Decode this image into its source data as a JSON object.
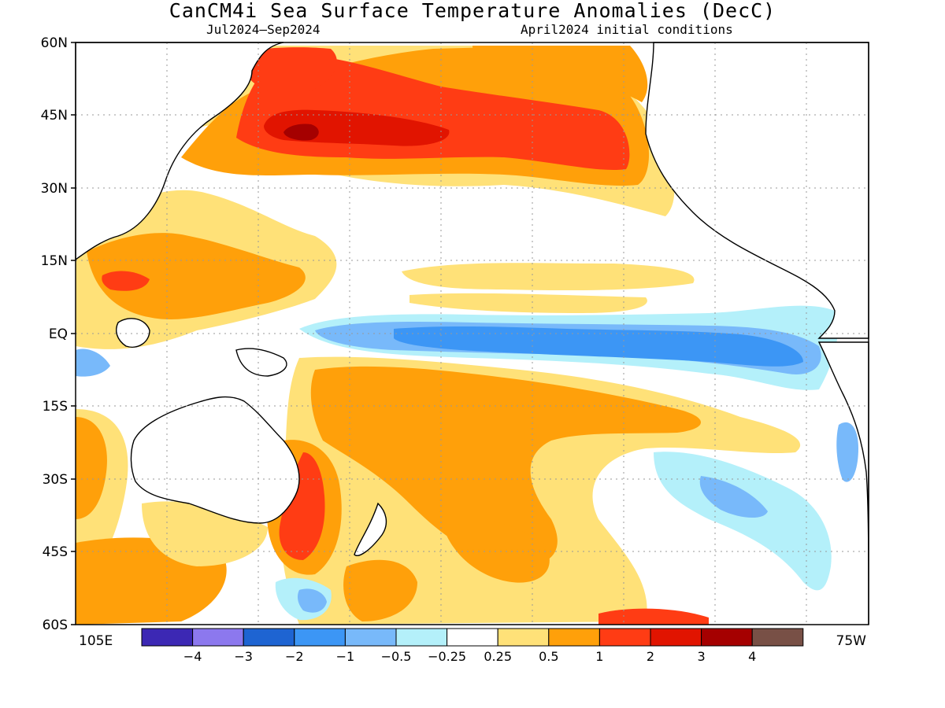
{
  "title": "CanCM4i Sea Surface Temperature Anomalies (DecC)",
  "subtitle_left": "Jul2024—Sep2024",
  "subtitle_right": "April2024 initial conditions",
  "lat_labels": [
    "60N",
    "45N",
    "30N",
    "15N",
    "EQ",
    "15S",
    "30S",
    "45S",
    "60S"
  ],
  "lon_left_label": "105E",
  "lon_right_label": "75W",
  "legend": {
    "labels": [
      "−4",
      "−3",
      "−2",
      "−1",
      "−0.5",
      "−0.25",
      "0.25",
      "0.5",
      "1",
      "2",
      "3",
      "4"
    ],
    "colors": [
      "#3c28b4",
      "#8c78ee",
      "#1e64d2",
      "#3c96f5",
      "#78b9fa",
      "#b4f0fa",
      "#ffffff",
      "#ffe178",
      "#ffa00a",
      "#ff3c14",
      "#e11400",
      "#a50000",
      "#785046"
    ]
  },
  "colors": {
    "warm_light": "#ffe178",
    "warm": "#ffa00a",
    "warm_strong": "#ff3c14",
    "warm_stronger": "#e11400",
    "warm_max": "#a50000",
    "cool_light": "#b4f0fa",
    "cool": "#78b9fa",
    "cool_strong": "#3c96f5",
    "cool_stronger": "#1e64d2"
  }
}
